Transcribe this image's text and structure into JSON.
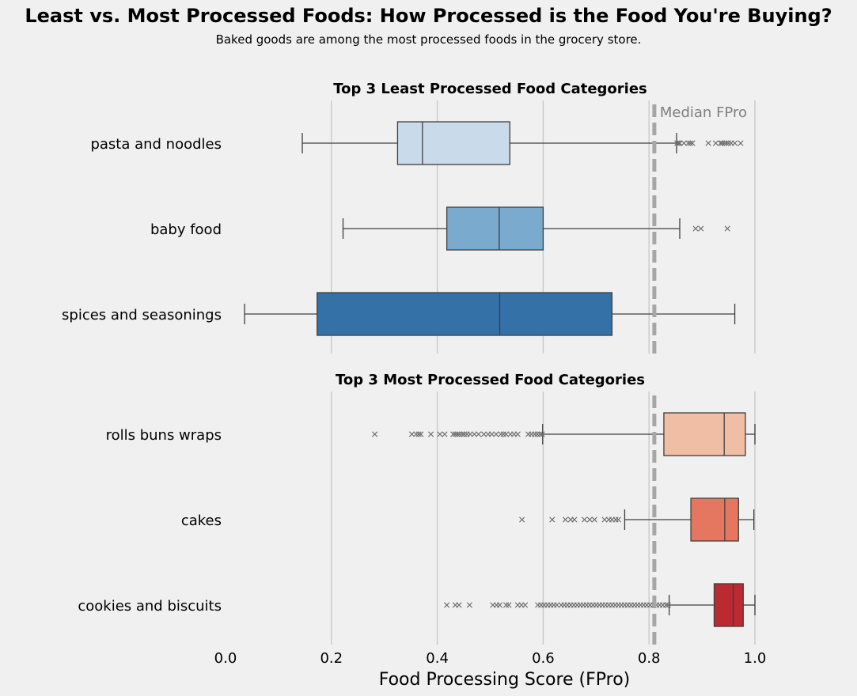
{
  "title": "Least vs. Most Processed Foods: How Processed is the Food You're Buying?",
  "subtitle": "Baked goods are among the most processed foods in the grocery store.",
  "chart_data": [
    {
      "type": "boxplot",
      "title": "Top 3 Least Processed Food Categories",
      "xlabel": "",
      "xlim": [
        0.0,
        1.0
      ],
      "grid": "vertical",
      "median_line": {
        "value": 0.81,
        "label": "Median FPro",
        "color": "#a6a6a6"
      },
      "categories": [
        {
          "name": "pasta and noodles",
          "color": "#c9daea",
          "whislo": 0.145,
          "q1": 0.325,
          "median": 0.372,
          "q3": 0.537,
          "whishi": 0.852,
          "fliers": [
            0.853,
            0.856,
            0.858,
            0.866,
            0.874,
            0.878,
            0.882,
            0.912,
            0.926,
            0.935,
            0.938,
            0.942,
            0.946,
            0.95,
            0.955,
            0.962,
            0.973
          ]
        },
        {
          "name": "baby food",
          "color": "#7aaacd",
          "whislo": 0.222,
          "q1": 0.418,
          "median": 0.517,
          "q3": 0.6,
          "whishi": 0.858,
          "fliers": [
            0.888,
            0.898,
            0.948
          ]
        },
        {
          "name": "spices and seasonings",
          "color": "#3471a7",
          "whislo": 0.036,
          "q1": 0.173,
          "median": 0.518,
          "q3": 0.73,
          "whishi": 0.962,
          "fliers": []
        }
      ]
    },
    {
      "type": "boxplot",
      "title": "Top 3 Most Processed Food Categories",
      "xlabel": "Food Processing Score (FPro)",
      "xlim": [
        0.0,
        1.0
      ],
      "xticks": [
        "0.0",
        "0.2",
        "0.4",
        "0.6",
        "0.8",
        "1.0"
      ],
      "grid": "vertical",
      "median_line": {
        "value": 0.81,
        "label": "",
        "color": "#a6a6a6"
      },
      "categories": [
        {
          "name": "rolls buns wraps",
          "color": "#f0bda5",
          "whislo": 0.599,
          "q1": 0.828,
          "median": 0.942,
          "q3": 0.982,
          "whishi": 1.0,
          "fliers": [
            0.282,
            0.352,
            0.36,
            0.365,
            0.369,
            0.388,
            0.405,
            0.414,
            0.43,
            0.434,
            0.438,
            0.442,
            0.447,
            0.451,
            0.456,
            0.462,
            0.47,
            0.478,
            0.488,
            0.496,
            0.503,
            0.511,
            0.52,
            0.525,
            0.53,
            0.538,
            0.545,
            0.552,
            0.572,
            0.578,
            0.584,
            0.589,
            0.594,
            0.598
          ]
        },
        {
          "name": "cakes",
          "color": "#e57660",
          "whislo": 0.754,
          "q1": 0.879,
          "median": 0.943,
          "q3": 0.969,
          "whishi": 0.998,
          "fliers": [
            0.56,
            0.617,
            0.642,
            0.652,
            0.659,
            0.678,
            0.688,
            0.697,
            0.716,
            0.724,
            0.73,
            0.737,
            0.742
          ]
        },
        {
          "name": "cookies and biscuits",
          "color": "#bc2a31",
          "whislo": 0.838,
          "q1": 0.923,
          "median": 0.959,
          "q3": 0.978,
          "whishi": 1.0,
          "fliers": [
            0.418,
            0.434,
            0.441,
            0.461,
            0.505,
            0.512,
            0.518,
            0.53,
            0.535,
            0.552,
            0.559,
            0.566,
            0.59,
            0.596,
            0.602,
            0.608,
            0.614,
            0.62,
            0.626,
            0.634,
            0.64,
            0.646,
            0.652,
            0.658,
            0.664,
            0.67,
            0.676,
            0.682,
            0.688,
            0.694,
            0.7,
            0.706,
            0.712,
            0.718,
            0.724,
            0.73,
            0.736,
            0.742,
            0.748,
            0.754,
            0.76,
            0.766,
            0.772,
            0.778,
            0.784,
            0.79,
            0.796,
            0.802,
            0.808,
            0.814,
            0.82,
            0.826,
            0.832,
            0.836
          ]
        }
      ]
    }
  ]
}
